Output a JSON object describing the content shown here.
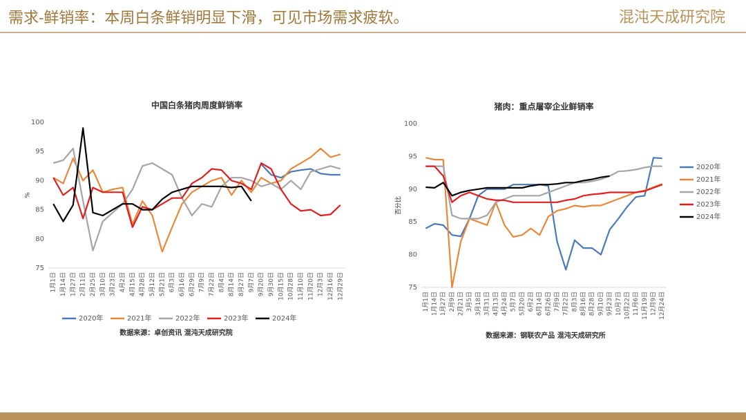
{
  "header": {
    "title": "需求-鲜销率：本周白条鲜销明显下滑，可见市场需求疲软。",
    "logo": "混沌天成研究院"
  },
  "chart_data": [
    {
      "type": "line",
      "title": "中国白条猪肉周度鲜销率",
      "ylabel": "%",
      "source": "数据来源：卓创资讯 混沌天成研究院",
      "legend": "bottom",
      "categories": [
        "1月1日",
        "1月14日",
        "1月27日",
        "2月11日",
        "2月25日",
        "3月10日",
        "3月23日",
        "4月2日",
        "4月15日",
        "4月28日",
        "5月12日",
        "5月21日",
        "6月3日",
        "6月16日",
        "6月29日",
        "7月9日",
        "7月22日",
        "8月4日",
        "8月14日",
        "8月27日",
        "9月7日",
        "9月20日",
        "9月30日",
        "10月15日",
        "10月28日",
        "11月10日",
        "11月20日",
        "12月3日",
        "12月16日",
        "12月29日"
      ],
      "ylim": [
        75,
        100
      ],
      "yticks": [
        75,
        80,
        85,
        90,
        95,
        100
      ],
      "series": [
        {
          "name": "2020年",
          "color": "#4a7ab5",
          "values": [
            null,
            null,
            null,
            null,
            null,
            null,
            null,
            null,
            null,
            null,
            null,
            null,
            null,
            null,
            null,
            null,
            null,
            null,
            null,
            null,
            null,
            92.8,
            91,
            90.5,
            91.5,
            91.8,
            92,
            91.2,
            91,
            91
          ]
        },
        {
          "name": "2021年",
          "color": "#e8883a",
          "values": [
            90.5,
            89.5,
            93.8,
            90,
            91.8,
            88,
            88.5,
            88.8,
            82.5,
            86.5,
            84,
            77.8,
            82,
            86,
            88,
            89,
            90,
            90.5,
            87.5,
            90,
            88,
            90.5,
            89.5,
            90,
            92,
            93,
            94,
            95.5,
            94,
            94.5
          ]
        },
        {
          "name": "2022年",
          "color": "#a5a5a5",
          "values": [
            93,
            93.5,
            95.5,
            86.5,
            78,
            83,
            84.5,
            86,
            88.5,
            92.5,
            93,
            92,
            91,
            87,
            84,
            86,
            85.5,
            89,
            90.5,
            90.5,
            90,
            89,
            89.5,
            88.5,
            90,
            88.5,
            91.5,
            92,
            92.5,
            92
          ]
        },
        {
          "name": "2023年",
          "color": "#e02020",
          "values": [
            90.5,
            87.5,
            88.8,
            83.5,
            88.8,
            88,
            88,
            88,
            82,
            85.5,
            85,
            86,
            87,
            87,
            89.5,
            90.5,
            92,
            91.8,
            90,
            89.5,
            88.5,
            93,
            92,
            88.5,
            86,
            84.8,
            85,
            84,
            84.2,
            85.8
          ]
        },
        {
          "name": "2024年",
          "color": "#000000",
          "values": [
            86,
            83,
            85.8,
            99,
            84.5,
            84,
            85,
            86,
            86,
            85,
            85,
            86.8,
            88,
            88.5,
            89,
            89,
            89,
            89,
            88.8,
            89,
            86.5,
            null,
            null,
            null,
            null,
            null,
            null,
            null,
            null,
            null
          ]
        }
      ]
    },
    {
      "type": "line",
      "title": "猪肉：重点屠宰企业鲜销率",
      "ylabel": "百分比",
      "source": "数据来源：钢联农产品 混沌天成研究所",
      "legend": "right",
      "categories": [
        "1月1日",
        "1月14日",
        "1月27日",
        "2月9日",
        "2月21日",
        "3月5日",
        "3月18日",
        "3月31日",
        "4月13日",
        "4月24日",
        "5月7日",
        "5月20日",
        "6月2日",
        "6月14日",
        "6月26日",
        "7月9日",
        "7月22日",
        "8月3日",
        "8月16日",
        "8月28日",
        "9月10日",
        "9月23日",
        "10月7日",
        "10月22日",
        "11月6日",
        "11月19日",
        "12月9日",
        "12月24日"
      ],
      "ylim": [
        75,
        100
      ],
      "yticks": [
        75,
        80,
        85,
        90,
        95,
        100
      ],
      "series": [
        {
          "name": "2020年",
          "color": "#4a7ab5",
          "values": [
            84,
            84.7,
            84.5,
            83,
            82.8,
            85.5,
            89,
            90,
            90,
            90,
            90.7,
            90.7,
            90.7,
            90.7,
            90.5,
            82,
            77.7,
            82.2,
            81,
            81,
            80,
            83.8,
            85.5,
            87.3,
            88.8,
            89,
            94.8,
            94.7
          ]
        },
        {
          "name": "2021年",
          "color": "#e8883a",
          "values": [
            94.8,
            94.5,
            94.5,
            75,
            82,
            85.5,
            85,
            84.5,
            88,
            84.5,
            82.7,
            83,
            84,
            83,
            85.8,
            86.7,
            87,
            87.5,
            87.3,
            87.5,
            87.5,
            88,
            88.5,
            89,
            89.5,
            89.8,
            90.3,
            90.8
          ]
        },
        {
          "name": "2022年",
          "color": "#a5a5a5",
          "values": [
            93.5,
            93.5,
            93.5,
            86,
            85.5,
            85.5,
            85.5,
            86,
            88,
            88.5,
            89,
            89,
            89,
            89,
            89.5,
            90,
            90.5,
            91,
            91,
            91.2,
            91.5,
            92,
            92.7,
            92.8,
            93,
            93.3,
            93.5,
            93.5
          ]
        },
        {
          "name": "2023年",
          "color": "#e02020",
          "values": [
            93.5,
            93.5,
            92,
            88,
            89,
            89.5,
            89,
            88.5,
            88.3,
            88.3,
            88,
            88,
            88,
            88,
            88,
            88,
            88.3,
            88.5,
            89,
            89.2,
            89.3,
            89.5,
            89.5,
            89.5,
            89.5,
            89.7,
            90.2,
            90.7
          ]
        },
        {
          "name": "2024年",
          "color": "#000000",
          "values": [
            90.3,
            90.2,
            91,
            89,
            89.5,
            89.8,
            90,
            90.2,
            90.2,
            90.2,
            90.2,
            90.2,
            90.5,
            90.7,
            90.7,
            90.8,
            91,
            91,
            91.3,
            91.5,
            91.8,
            92,
            null,
            null,
            null,
            null,
            null,
            null
          ]
        }
      ]
    }
  ]
}
